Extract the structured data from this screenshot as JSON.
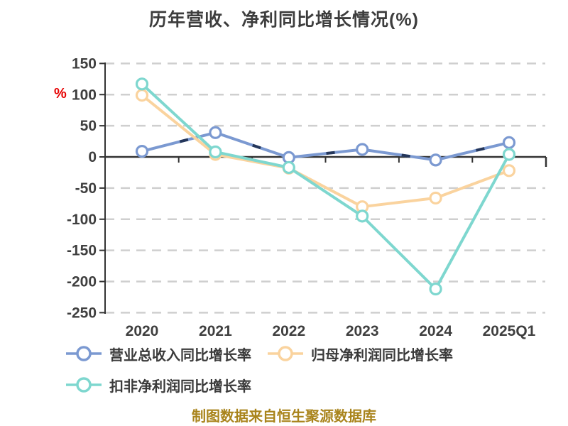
{
  "title": "历年营收、净利同比增长情况(%)",
  "footer": "制图数据来自恒生聚源数据库",
  "colors": {
    "revenue_series": "#7b99d1",
    "revenue_series_dark_dash": "#1b2b4d",
    "net_profit_series": "#fad39e",
    "non_gaap_series": "#7ed7cf",
    "axis": "#333333",
    "gridline": "#cfcfcf",
    "tick_label": "#3f3f3f",
    "unit_label": "#e60000",
    "footer_text": "#a9841c",
    "marker_fill": "#ffffff"
  },
  "chart_data": {
    "type": "line",
    "title": "历年营收、净利同比增长情况(%)",
    "categories": [
      "2020",
      "2021",
      "2022",
      "2023",
      "2024",
      "2025Q1"
    ],
    "series": [
      {
        "name": "营业总收入同比增长率",
        "color": "#7b99d1",
        "values": [
          9,
          39,
          -1,
          12,
          -5,
          23
        ]
      },
      {
        "name": "归母净利润同比增长率",
        "color": "#fad39e",
        "values": [
          99,
          4,
          -18,
          -80,
          -66,
          -22
        ]
      },
      {
        "name": "扣非净利润同比增长率",
        "color": "#7ed7cf",
        "values": [
          117,
          8,
          -17,
          -95,
          -212,
          4
        ]
      }
    ],
    "ylabel": "%",
    "ylim": [
      -250,
      150
    ],
    "yticks": [
      150,
      100,
      50,
      0,
      -50,
      -100,
      -150,
      -200,
      -250
    ],
    "grid": "horizontal-dashed",
    "zero_line": "solid",
    "legend_position": "bottom-left",
    "marker_style": "open-circle"
  }
}
